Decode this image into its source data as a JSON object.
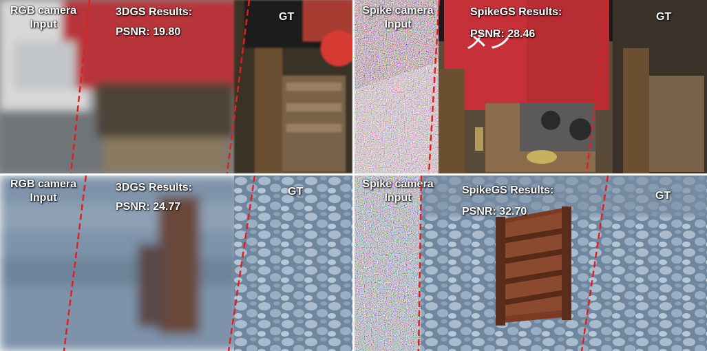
{
  "top_left": {
    "input_label_1": "RGB camera",
    "input_label_2": "Input",
    "method_label": "3DGS Results:",
    "psnr": "PSNR: 19.80",
    "gt_label": "GT"
  },
  "top_right": {
    "input_label_1": "Spike camera",
    "input_label_2": "Input",
    "method_label": "SpikeGS Results:",
    "psnr": "PSNR: 28.46",
    "gt_label": "GT"
  },
  "bottom_left": {
    "input_label_1": "RGB camera",
    "input_label_2": "Input",
    "method_label": "3DGS Results:",
    "psnr": "PSNR: 24.77",
    "gt_label": "GT"
  },
  "bottom_right": {
    "input_label_1": "Spike camera",
    "input_label_2": "Input",
    "method_label": "SpikeGS Results:",
    "psnr": "PSNR: 32.70",
    "gt_label": "GT"
  },
  "colors": {
    "divider": "#e02020",
    "label": "#ffffff",
    "stall_red": "#c0252a",
    "wood": "#6b4a2c",
    "stone": "#7e93aa"
  }
}
